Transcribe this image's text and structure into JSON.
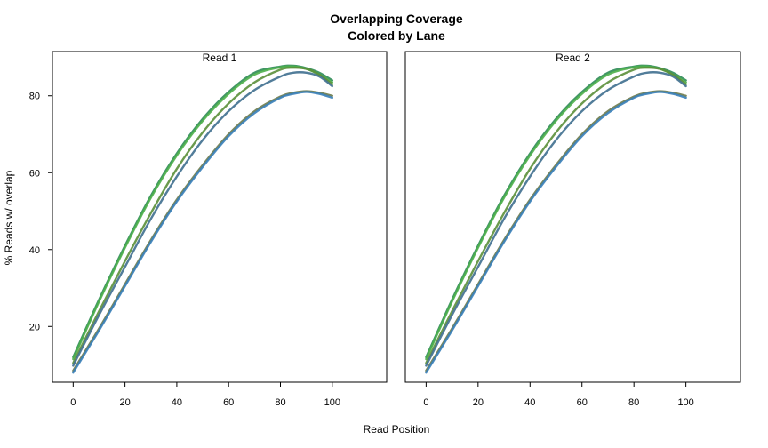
{
  "chart_data": {
    "type": "line",
    "title": "Overlapping Coverage",
    "subtitle": "Colored by Lane",
    "xlabel": "Read Position",
    "ylabel": "% Reads w/ overlap",
    "xlim": [
      -8,
      121
    ],
    "ylim": [
      5.5,
      91.5
    ],
    "xticks": [
      0,
      20,
      40,
      60,
      80,
      100
    ],
    "yticks": [
      20,
      40,
      60,
      80
    ],
    "grid": false,
    "colors": [
      "#2e8b57",
      "#4daf4a",
      "#5b8f3a",
      "#3f6f8f",
      "#6b7a4b",
      "#377eb8"
    ],
    "panels": [
      {
        "title": "Read 1",
        "series": [
          {
            "x": [
              0,
              10,
              20,
              30,
              40,
              50,
              60,
              70,
              80,
              85,
              90,
              95,
              100
            ],
            "y": [
              12,
              27,
              41,
              54,
              65,
              74,
              81,
              86,
              87.6,
              87.8,
              87.2,
              86,
              84
            ]
          },
          {
            "x": [
              0,
              10,
              20,
              30,
              40,
              50,
              60,
              70,
              80,
              85,
              90,
              95,
              100
            ],
            "y": [
              11.5,
              26.5,
              40.5,
              53.5,
              64.5,
              73.5,
              80.5,
              85.5,
              87.4,
              87.6,
              87,
              85.5,
              83.5
            ]
          },
          {
            "x": [
              0,
              10,
              20,
              30,
              40,
              50,
              60,
              70,
              80,
              85,
              90,
              95,
              100
            ],
            "y": [
              10.5,
              24,
              37,
              49.5,
              61,
              70.5,
              78,
              83.5,
              86.8,
              87.3,
              87,
              85.5,
              83
            ]
          },
          {
            "x": [
              0,
              10,
              20,
              30,
              40,
              50,
              60,
              70,
              80,
              85,
              90,
              95,
              100
            ],
            "y": [
              9.8,
              23,
              35.5,
              48,
              59,
              68.5,
              76,
              81.5,
              85,
              86,
              86,
              85,
              82.5
            ]
          },
          {
            "x": [
              0,
              10,
              20,
              30,
              40,
              50,
              60,
              70,
              80,
              85,
              90,
              95,
              100
            ],
            "y": [
              8.5,
              19.5,
              31,
              42.5,
              53,
              62,
              70,
              76,
              79.8,
              80.8,
              81.2,
              80.8,
              80
            ]
          },
          {
            "x": [
              0,
              10,
              20,
              30,
              40,
              50,
              60,
              70,
              80,
              85,
              90,
              95,
              100
            ],
            "y": [
              8,
              19,
              30.5,
              42,
              52.5,
              61.5,
              69.5,
              75.5,
              79.5,
              80.5,
              81,
              80.5,
              79.5
            ]
          }
        ]
      },
      {
        "title": "Read 2",
        "series": [
          {
            "x": [
              0,
              10,
              20,
              30,
              40,
              50,
              60,
              70,
              80,
              85,
              90,
              95,
              100
            ],
            "y": [
              12,
              27,
              41,
              54,
              65,
              74,
              81,
              86,
              87.6,
              87.8,
              87.2,
              86,
              84
            ]
          },
          {
            "x": [
              0,
              10,
              20,
              30,
              40,
              50,
              60,
              70,
              80,
              85,
              90,
              95,
              100
            ],
            "y": [
              11.5,
              26.5,
              40.5,
              53.5,
              64.5,
              73.5,
              80.5,
              85.5,
              87.4,
              87.6,
              87,
              85.5,
              83.5
            ]
          },
          {
            "x": [
              0,
              10,
              20,
              30,
              40,
              50,
              60,
              70,
              80,
              85,
              90,
              95,
              100
            ],
            "y": [
              10.5,
              24,
              37,
              49.5,
              61,
              70.5,
              78,
              83.5,
              86.8,
              87.3,
              87,
              85.5,
              83
            ]
          },
          {
            "x": [
              0,
              10,
              20,
              30,
              40,
              50,
              60,
              70,
              80,
              85,
              90,
              95,
              100
            ],
            "y": [
              9.8,
              23,
              35.5,
              48,
              59,
              68.5,
              76,
              81.5,
              85,
              86,
              86,
              85,
              82.5
            ]
          },
          {
            "x": [
              0,
              10,
              20,
              30,
              40,
              50,
              60,
              70,
              80,
              85,
              90,
              95,
              100
            ],
            "y": [
              8.5,
              19.5,
              31,
              42.5,
              53,
              62,
              70,
              76,
              79.8,
              80.8,
              81.2,
              80.8,
              80
            ]
          },
          {
            "x": [
              0,
              10,
              20,
              30,
              40,
              50,
              60,
              70,
              80,
              85,
              90,
              95,
              100
            ],
            "y": [
              8,
              19,
              30.5,
              42,
              52.5,
              61.5,
              69.5,
              75.5,
              79.5,
              80.5,
              81,
              80.5,
              79.5
            ]
          }
        ]
      }
    ]
  }
}
